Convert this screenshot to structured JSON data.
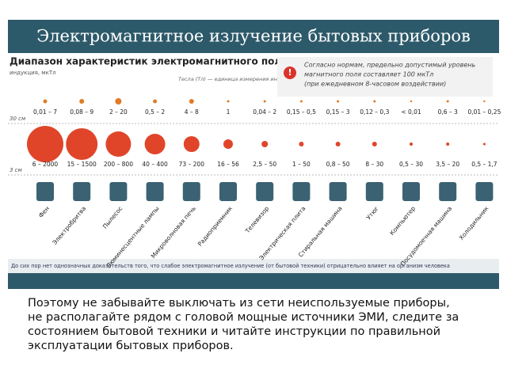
{
  "header": {
    "title": "Электромагнитное излучение бытовых приборов"
  },
  "subtitle": "Диапазон характеристик электромагнитного поля",
  "unit_note": "индукция, мкТл",
  "tesla_note": "Тесла (Тл) — единица измерения индукции магнитного поля",
  "notice": {
    "icon": "!",
    "lines": [
      "Согласно нормам, предельно допустимый уровень",
      "магнитного поля составляет 100 мкТл",
      "(при ежедневном 8-часовом воздействии)"
    ]
  },
  "rows": [
    {
      "label": "30 см",
      "ranges": [
        "0,01 – 7",
        "0,08 – 9",
        "2 – 20",
        "0,5 – 2",
        "4 – 8",
        "1",
        "0,04 – 2",
        "0,15 – 0,5",
        "0,15 – 3",
        "0,12 – 0,3",
        "< 0,01",
        "0,6 – 3",
        "0,01 – 0,25"
      ]
    },
    {
      "label": "3 см",
      "ranges": [
        "6 – 2000",
        "15 – 1500",
        "200 – 800",
        "40 – 400",
        "73 – 200",
        "16 – 56",
        "2,5 – 50",
        "1 – 50",
        "0,8 – 50",
        "8 – 30",
        "0,5 – 30",
        "3,5 – 20",
        "0,5 – 1,7"
      ]
    }
  ],
  "appliances": [
    "Фен",
    "Электробритва",
    "Пылесос",
    "Люминесцентные лампы",
    "Микроволновая печь",
    "Радиоприемник",
    "Телевизор",
    "Электрическая плита",
    "Стиральная машина",
    "Утюг",
    "Компьютер",
    "Посудомоечная машина",
    "Холодильник"
  ],
  "footnote": "До сих пор нет однозначных доказательств того, что слабое электромагнитное излучение (от бытовой техники) отрицательно влияет на организм человека",
  "advice": [
    "Поэтому не забывайте выключать из сети неиспользуемые приборы,",
    "не располагайте рядом с головой мощные источники ЭМИ, следите за состоянием бытовой техники и читайте инструкции по правильной эксплуатации бытовых приборов."
  ]
}
